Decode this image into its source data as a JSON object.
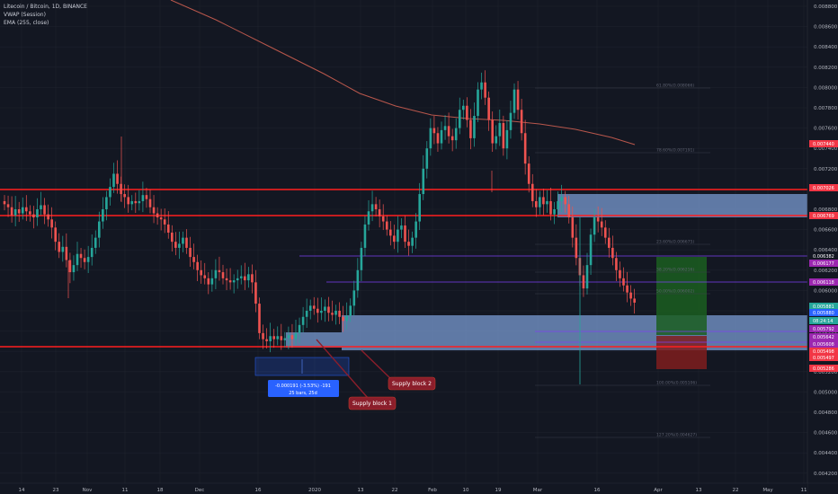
{
  "legend": {
    "symbol": "Litecoin / Bitcoin, 1D, BINANCE",
    "vwap": "VWAP (Session)",
    "ema": "EMA (255, close)"
  },
  "price_axis": [
    "0.008800",
    "0.008600",
    "0.008400",
    "0.008200",
    "0.008000",
    "0.007800",
    "0.007600",
    "0.007400",
    "0.007200",
    "0.007000",
    "0.006800",
    "0.006600",
    "0.006400",
    "0.006200",
    "0.006000",
    "0.005800",
    "0.005600",
    "0.005400",
    "0.005200",
    "0.005000",
    "0.004800",
    "0.004600",
    "0.004400",
    "0.004200"
  ],
  "time_axis": [
    "14",
    "23",
    "Nov",
    "11",
    "18",
    "Dec",
    "16",
    "2020",
    "13",
    "22",
    "Feb",
    "10",
    "19",
    "Mar",
    "16",
    "Apr",
    "13",
    "22",
    "May",
    "11"
  ],
  "price_tags": [
    {
      "text": "0.007440",
      "color": "#f23645"
    },
    {
      "text": "0.007026",
      "color": "#f23645"
    },
    {
      "text": "0.006769",
      "color": "#f23645"
    },
    {
      "text": "0.006382",
      "color": "#131722"
    },
    {
      "text": "0.006177",
      "color": "#9c27b0"
    },
    {
      "text": "0.006118",
      "color": "#9c27b0"
    },
    {
      "text": "0.005881",
      "color": "#26a69a"
    },
    {
      "text": "0.005880",
      "color": "#2962ff"
    },
    {
      "text": "08:24:14",
      "color": "#26a69a"
    },
    {
      "text": "0.005792",
      "color": "#9c27b0"
    },
    {
      "text": "0.005642",
      "color": "#9c27b0"
    },
    {
      "text": "0.005608",
      "color": "#9c27b0"
    },
    {
      "text": "0.005498",
      "color": "#f23645"
    },
    {
      "text": "0.005497",
      "color": "#f23645"
    },
    {
      "text": "0.005286",
      "color": "#f23645"
    }
  ],
  "fib_labels": [
    "61.80%(0.008066)",
    "78.60%(0.007191)",
    "23.60%(0.006675)",
    "38.20%(0.006216)",
    "50.00%(0.006002)",
    "100.00%(0.005106)",
    "127.20%(0.004627)"
  ],
  "measure": {
    "line1": "-0.000191 (-3.53%) -191",
    "line2": "25 bars, 25d"
  },
  "annotations": {
    "supply1": "Supply block 1",
    "supply2": "Supply block 2"
  },
  "colors": {
    "up": "#26a69a",
    "down": "#ef5350",
    "ema": "#b9574c",
    "resistance": "#ff1e1e",
    "zone": "#7a9bd1",
    "accent": "#2962ff",
    "purple": "#7e3ff2"
  },
  "chart_data": {
    "type": "candlestick",
    "symbol": "Litecoin / Bitcoin, 1D, BINANCE",
    "ylim": [
      0.0041,
      0.0089
    ],
    "x_ticks": [
      "14",
      "23",
      "Nov",
      "11",
      "18",
      "Dec",
      "16",
      "2020",
      "13",
      "22",
      "Feb",
      "10",
      "19",
      "Mar",
      "16",
      "Apr",
      "13",
      "22",
      "May",
      "11"
    ],
    "y_ticks": [
      0.0088,
      0.0086,
      0.0084,
      0.0082,
      0.008,
      0.0078,
      0.0076,
      0.0074,
      0.0072,
      0.007,
      0.0068,
      0.0066,
      0.0064,
      0.0062,
      0.006,
      0.0058,
      0.0056,
      0.0054,
      0.0052,
      0.005,
      0.0048,
      0.0046,
      0.0044,
      0.0042
    ],
    "key_levels": [
      0.007026,
      0.006769,
      0.006382,
      0.006118,
      0.005497
    ],
    "closes": [
      0.00685,
      0.00682,
      0.00674,
      0.0068,
      0.00676,
      0.00682,
      0.00678,
      0.00675,
      0.00672,
      0.0068,
      0.00684,
      0.00675,
      0.0067,
      0.00662,
      0.00648,
      0.00638,
      0.00643,
      0.0063,
      0.00618,
      0.00625,
      0.00636,
      0.00632,
      0.00628,
      0.00633,
      0.00642,
      0.00652,
      0.00668,
      0.0068,
      0.00692,
      0.00702,
      0.00715,
      0.00705,
      0.00695,
      0.00692,
      0.00685,
      0.00688,
      0.00686,
      0.00688,
      0.00694,
      0.0069,
      0.00682,
      0.00676,
      0.00672,
      0.0067,
      0.00665,
      0.00657,
      0.00648,
      0.00642,
      0.00646,
      0.00652,
      0.00642,
      0.00633,
      0.00628,
      0.0062,
      0.00615,
      0.00612,
      0.00606,
      0.00612,
      0.0062,
      0.00618,
      0.00612,
      0.0061,
      0.00608,
      0.0061,
      0.00612,
      0.00614,
      0.0061,
      0.00616,
      0.00608,
      0.00587,
      0.00558,
      0.00552,
      0.0055,
      0.00555,
      0.00552,
      0.00555,
      0.00551,
      0.00553,
      0.00556,
      0.00552,
      0.00558,
      0.00566,
      0.00574,
      0.0058,
      0.00585,
      0.00582,
      0.00578,
      0.0058,
      0.00584,
      0.00578,
      0.00576,
      0.0058,
      0.00574,
      0.0057,
      0.00575,
      0.00585,
      0.006,
      0.0062,
      0.00642,
      0.00665,
      0.00678,
      0.00685,
      0.0068,
      0.00673,
      0.00668,
      0.0066,
      0.00654,
      0.00648,
      0.0066,
      0.00664,
      0.00648,
      0.00644,
      0.00652,
      0.00668,
      0.00695,
      0.0072,
      0.0074,
      0.0076,
      0.00755,
      0.00745,
      0.00758,
      0.00762,
      0.00752,
      0.00748,
      0.0076,
      0.00778,
      0.00782,
      0.00768,
      0.0075,
      0.00772,
      0.00798,
      0.00805,
      0.0079,
      0.00768,
      0.00745,
      0.00752,
      0.00765,
      0.0074,
      0.00758,
      0.00775,
      0.00798,
      0.00778,
      0.00755,
      0.00725,
      0.00705,
      0.00688,
      0.00682,
      0.00692,
      0.00685,
      0.00688,
      0.00675,
      0.0068,
      0.00688,
      0.00692,
      0.00685,
      0.00672,
      0.00652,
      0.00632,
      0.00615,
      0.00602,
      0.00625,
      0.00655,
      0.00672,
      0.00668,
      0.00662,
      0.00652,
      0.00642,
      0.00632,
      0.0062,
      0.00612,
      0.00605,
      0.00598,
      0.00592,
      0.00588
    ]
  }
}
